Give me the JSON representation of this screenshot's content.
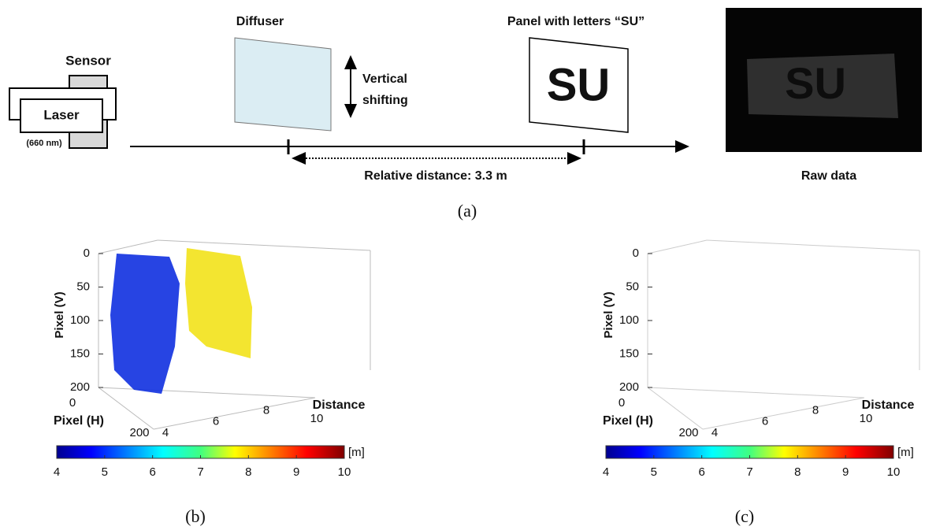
{
  "panel_a": {
    "sensor": "Sensor",
    "laser": "Laser",
    "wavelength": "(660 nm)",
    "diffuser": "Diffuser",
    "shift_line1": "Vertical",
    "shift_line2": "shifting",
    "panel_title": "Panel with letters “SU”",
    "panel_text": "SU",
    "distance": "Relative distance: 3.3 m",
    "raw_text": "SU",
    "raw_label": "Raw data",
    "caption": "(a)"
  },
  "plots": [
    {
      "caption": "(b)",
      "ylabel": "Pixel (V)",
      "yticks": [
        0,
        50,
        100,
        150,
        200
      ],
      "xlabel": "Pixel (H)",
      "xticks": [
        0,
        200
      ],
      "zlabel": "Distance",
      "zticks": [
        4,
        6,
        8,
        10
      ],
      "colorbar_ticks": [
        4,
        5,
        6,
        7,
        8,
        9,
        10
      ],
      "colorbar_unit": "[m]"
    },
    {
      "caption": "(c)",
      "ylabel": "Pixel (V)",
      "yticks": [
        0,
        50,
        100,
        150,
        200
      ],
      "xlabel": "Pixel (H)",
      "xticks": [
        0,
        200
      ],
      "zlabel": "Distance",
      "zticks": [
        4,
        6,
        8,
        10
      ],
      "colorbar_ticks": [
        4,
        5,
        6,
        7,
        8,
        9,
        10
      ],
      "colorbar_unit": "[m]"
    }
  ]
}
